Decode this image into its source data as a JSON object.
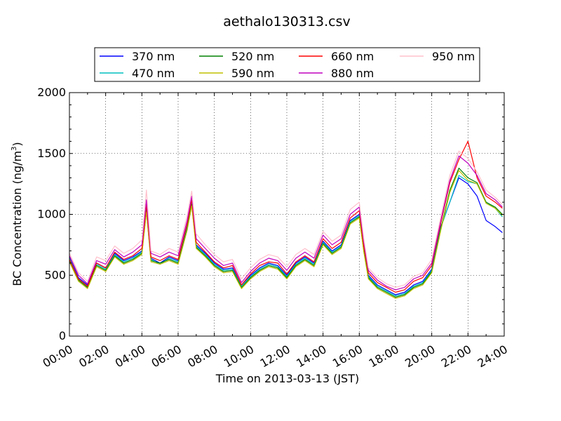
{
  "chart_data": {
    "type": "line",
    "title": "aethalo130313.csv",
    "xlabel": "Time on 2013-03-13 (JST)",
    "ylabel": "BC Concentration (ng/m3)",
    "ylabel_main": "BC Concentration (ng/m",
    "ylabel_sup": "3",
    "ylabel_end": ")",
    "xlim": [
      "00:00",
      "24:00"
    ],
    "ylim": [
      0,
      2000
    ],
    "xticks": [
      "00:00",
      "02:00",
      "04:00",
      "06:00",
      "08:00",
      "10:00",
      "12:00",
      "14:00",
      "16:00",
      "18:00",
      "20:00",
      "22:00",
      "24:00"
    ],
    "yticks": [
      "0",
      "500",
      "1000",
      "1500",
      "2000"
    ],
    "grid": true,
    "legend_position": "top-center",
    "x_hours": [
      0,
      0.5,
      1,
      1.5,
      2,
      2.5,
      3,
      3.5,
      4,
      4.25,
      4.5,
      5,
      5.5,
      6,
      6.5,
      6.75,
      7,
      7.5,
      8,
      8.5,
      9,
      9.5,
      10,
      10.5,
      11,
      11.5,
      12,
      12.5,
      13,
      13.5,
      14,
      14.5,
      15,
      15.5,
      16,
      16.25,
      16.5,
      17,
      17.5,
      18,
      18.5,
      19,
      19.5,
      20,
      20.5,
      21,
      21.5,
      22,
      22.5,
      23,
      23.5,
      23.9
    ],
    "series": [
      {
        "name": "370 nm",
        "color": "#0000ff",
        "values": [
          650,
          480,
          420,
          600,
          560,
          680,
          620,
          650,
          700,
          1050,
          640,
          600,
          650,
          620,
          900,
          1100,
          750,
          680,
          600,
          550,
          560,
          420,
          500,
          560,
          600,
          580,
          500,
          600,
          650,
          600,
          780,
          700,
          750,
          950,
          1000,
          720,
          500,
          420,
          380,
          340,
          360,
          420,
          450,
          550,
          900,
          1100,
          1300,
          1250,
          1150,
          950,
          900,
          850
        ]
      },
      {
        "name": "470 nm",
        "color": "#00bfbf",
        "values": [
          640,
          470,
          410,
          590,
          550,
          670,
          610,
          640,
          690,
          1040,
          630,
          590,
          640,
          610,
          890,
          1090,
          740,
          670,
          590,
          540,
          550,
          410,
          490,
          550,
          590,
          570,
          490,
          590,
          640,
          590,
          770,
          690,
          740,
          940,
          990,
          710,
          490,
          410,
          370,
          330,
          350,
          410,
          440,
          540,
          890,
          1100,
          1320,
          1270,
          1250,
          1100,
          1050,
          980
        ]
      },
      {
        "name": "520 nm",
        "color": "#008000",
        "values": [
          620,
          460,
          400,
          580,
          540,
          660,
          600,
          630,
          680,
          1030,
          620,
          600,
          630,
          600,
          880,
          1080,
          730,
          660,
          580,
          530,
          540,
          400,
          480,
          540,
          580,
          560,
          480,
          580,
          630,
          580,
          760,
          680,
          730,
          930,
          980,
          700,
          480,
          400,
          360,
          320,
          340,
          400,
          430,
          530,
          880,
          1200,
          1380,
          1300,
          1260,
          1100,
          1060,
          1000
        ]
      },
      {
        "name": "590 nm",
        "color": "#bfbf00",
        "values": [
          610,
          450,
          390,
          570,
          530,
          650,
          590,
          620,
          670,
          1020,
          610,
          590,
          620,
          590,
          870,
          1070,
          720,
          650,
          570,
          520,
          530,
          390,
          470,
          530,
          570,
          550,
          470,
          570,
          620,
          570,
          750,
          670,
          720,
          920,
          970,
          690,
          470,
          390,
          350,
          310,
          330,
          390,
          420,
          520,
          870,
          1180,
          1360,
          1280,
          1250,
          1090,
          1050,
          990
        ]
      },
      {
        "name": "660 nm",
        "color": "#ff0000",
        "values": [
          630,
          470,
          410,
          600,
          560,
          690,
          630,
          660,
          720,
          1080,
          650,
          620,
          660,
          630,
          920,
          1120,
          770,
          690,
          610,
          560,
          580,
          420,
          510,
          580,
          610,
          600,
          510,
          610,
          660,
          610,
          800,
          720,
          770,
          970,
          1030,
          740,
          520,
          440,
          400,
          360,
          380,
          450,
          480,
          580,
          930,
          1260,
          1450,
          1600,
          1300,
          1150,
          1100,
          1050
        ]
      },
      {
        "name": "880 nm",
        "color": "#bf00bf",
        "values": [
          660,
          500,
          430,
          620,
          590,
          710,
          650,
          690,
          750,
          1120,
          680,
          650,
          690,
          660,
          950,
          1150,
          800,
          720,
          640,
          580,
          600,
          440,
          530,
          600,
          640,
          620,
          540,
          640,
          690,
          640,
          830,
          750,
          800,
          1000,
          1060,
          770,
          540,
          460,
          410,
          380,
          400,
          470,
          500,
          600,
          950,
          1280,
          1480,
          1420,
          1320,
          1170,
          1120,
          1060
        ]
      },
      {
        "name": "950 nm",
        "color": "#ffc0cb",
        "values": [
          680,
          520,
          450,
          650,
          620,
          740,
          680,
          720,
          790,
          1200,
          700,
          670,
          720,
          690,
          990,
          1190,
          840,
          750,
          670,
          610,
          630,
          470,
          560,
          630,
          670,
          650,
          570,
          670,
          720,
          670,
          860,
          780,
          830,
          1040,
          1100,
          800,
          560,
          480,
          430,
          400,
          420,
          490,
          520,
          630,
          980,
          1320,
          1520,
          1460,
          1350,
          1200,
          1140,
          1080
        ]
      }
    ]
  }
}
